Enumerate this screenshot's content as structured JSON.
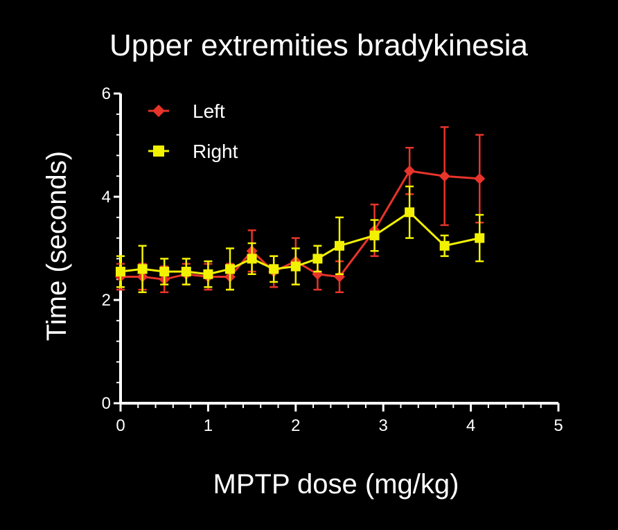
{
  "chart_data": {
    "type": "line",
    "title": "Upper extremities bradykinesia",
    "xlabel": "MPTP dose (mg/kg)",
    "ylabel": "Time (seconds)",
    "xlim": [
      0,
      5
    ],
    "ylim": [
      0,
      6
    ],
    "xticks": [
      "0",
      "1",
      "2",
      "3",
      "4",
      "5"
    ],
    "yticks": [
      "0",
      "2",
      "4",
      "6"
    ],
    "legend_position": "top-left",
    "grid": false,
    "series": [
      {
        "name": "Left",
        "color": "#e8342a",
        "marker": "diamond",
        "x": [
          0,
          0.25,
          0.5,
          0.75,
          1,
          1.25,
          1.5,
          1.75,
          2,
          2.25,
          2.5,
          2.9,
          3.3,
          3.7,
          4.1
        ],
        "y": [
          2.45,
          2.45,
          2.4,
          2.5,
          2.45,
          2.45,
          2.95,
          2.55,
          2.75,
          2.5,
          2.45,
          3.35,
          4.5,
          4.4,
          4.35
        ],
        "error": [
          0.25,
          0.25,
          0.25,
          0.2,
          0.25,
          0.25,
          0.4,
          0.3,
          0.45,
          0.3,
          0.3,
          0.5,
          0.45,
          0.95,
          0.85
        ]
      },
      {
        "name": "Right",
        "color": "#f2f200",
        "marker": "square",
        "x": [
          0,
          0.25,
          0.5,
          0.75,
          1,
          1.25,
          1.5,
          1.75,
          2,
          2.25,
          2.5,
          2.9,
          3.3,
          3.7,
          4.1
        ],
        "y": [
          2.55,
          2.6,
          2.55,
          2.55,
          2.5,
          2.6,
          2.8,
          2.6,
          2.65,
          2.8,
          3.05,
          3.25,
          3.7,
          3.05,
          3.2
        ],
        "error": [
          0.3,
          0.45,
          0.25,
          0.25,
          0.25,
          0.4,
          0.3,
          0.25,
          0.35,
          0.25,
          0.55,
          0.3,
          0.5,
          0.2,
          0.45
        ]
      }
    ]
  },
  "colors": {
    "background": "#000000",
    "axis": "#ffffff",
    "text": "#ffffff"
  }
}
